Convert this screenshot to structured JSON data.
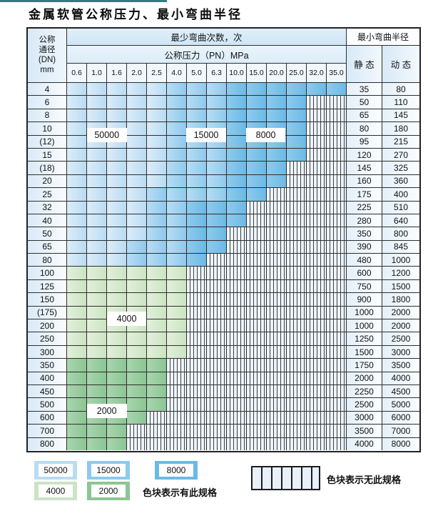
{
  "chart_data": {
    "type": "heatmap",
    "title": "金属软管公称压力、最小弯曲半径",
    "dn_header_lines": [
      "公称",
      "通径",
      "(DN)",
      "mm"
    ],
    "col_group_label": "最少弯曲次数，次",
    "pressure_label": "公称压力（PN）MPa",
    "radius_label": "最小弯曲半径",
    "static_label": "静 态",
    "dynamic_label": "动 态",
    "x_ticks": [
      "0.6",
      "1.0",
      "1.6",
      "2.0",
      "2.5",
      "4.0",
      "5.0",
      "6.3",
      "10.0",
      "15.0",
      "20.0",
      "25.0",
      "32.0",
      "35.0"
    ],
    "rows": [
      {
        "dn": "4",
        "static": "35",
        "dynamic": "80",
        "zones": [
          [
            "50000",
            0,
            4
          ],
          [
            "15000",
            5,
            7
          ],
          [
            "8000",
            8,
            13
          ]
        ]
      },
      {
        "dn": "6",
        "static": "50",
        "dynamic": "110",
        "zones": [
          [
            "50000",
            0,
            4
          ],
          [
            "15000",
            5,
            7
          ],
          [
            "8000",
            8,
            11
          ]
        ]
      },
      {
        "dn": "8",
        "static": "65",
        "dynamic": "145",
        "zones": [
          [
            "50000",
            0,
            4
          ],
          [
            "15000",
            5,
            7
          ],
          [
            "8000",
            8,
            11
          ]
        ]
      },
      {
        "dn": "10",
        "static": "80",
        "dynamic": "180",
        "zones": [
          [
            "50000",
            0,
            4
          ],
          [
            "15000",
            5,
            7
          ],
          [
            "8000",
            8,
            11
          ]
        ]
      },
      {
        "dn": "(12)",
        "static": "95",
        "dynamic": "215",
        "zones": [
          [
            "50000",
            0,
            4
          ],
          [
            "15000",
            5,
            7
          ],
          [
            "8000",
            8,
            11
          ]
        ]
      },
      {
        "dn": "15",
        "static": "120",
        "dynamic": "270",
        "zones": [
          [
            "50000",
            0,
            4
          ],
          [
            "15000",
            5,
            7
          ],
          [
            "8000",
            8,
            11
          ]
        ]
      },
      {
        "dn": "(18)",
        "static": "145",
        "dynamic": "325",
        "zones": [
          [
            "50000",
            0,
            4
          ],
          [
            "15000",
            5,
            7
          ],
          [
            "8000",
            8,
            10
          ]
        ]
      },
      {
        "dn": "20",
        "static": "160",
        "dynamic": "360",
        "zones": [
          [
            "50000",
            0,
            4
          ],
          [
            "15000",
            5,
            7
          ],
          [
            "8000",
            8,
            10
          ]
        ]
      },
      {
        "dn": "25",
        "static": "175",
        "dynamic": "400",
        "zones": [
          [
            "50000",
            0,
            3
          ],
          [
            "15000",
            4,
            7
          ],
          [
            "8000",
            8,
            9
          ]
        ]
      },
      {
        "dn": "32",
        "static": "225",
        "dynamic": "510",
        "zones": [
          [
            "50000",
            0,
            3
          ],
          [
            "15000",
            4,
            5
          ],
          [
            "8000",
            6,
            8
          ]
        ]
      },
      {
        "dn": "40",
        "static": "280",
        "dynamic": "640",
        "zones": [
          [
            "50000",
            0,
            3
          ],
          [
            "15000",
            4,
            5
          ],
          [
            "8000",
            6,
            8
          ]
        ]
      },
      {
        "dn": "50",
        "static": "350",
        "dynamic": "800",
        "zones": [
          [
            "50000",
            0,
            3
          ],
          [
            "15000",
            4,
            5
          ],
          [
            "8000",
            6,
            7
          ]
        ]
      },
      {
        "dn": "65",
        "static": "390",
        "dynamic": "845",
        "zones": [
          [
            "50000",
            0,
            2
          ],
          [
            "15000",
            3,
            5
          ],
          [
            "8000",
            6,
            7
          ]
        ]
      },
      {
        "dn": "80",
        "static": "480",
        "dynamic": "1000",
        "zones": [
          [
            "50000",
            0,
            2
          ],
          [
            "15000",
            3,
            5
          ],
          [
            "8000",
            6,
            6
          ]
        ]
      },
      {
        "dn": "100",
        "static": "600",
        "dynamic": "1200",
        "zones": [
          [
            "4000",
            0,
            5
          ]
        ]
      },
      {
        "dn": "125",
        "static": "750",
        "dynamic": "1500",
        "zones": [
          [
            "4000",
            0,
            5
          ]
        ]
      },
      {
        "dn": "150",
        "static": "900",
        "dynamic": "1800",
        "zones": [
          [
            "4000",
            0,
            5
          ]
        ]
      },
      {
        "dn": "(175)",
        "static": "1000",
        "dynamic": "2000",
        "zones": [
          [
            "4000",
            0,
            5
          ]
        ]
      },
      {
        "dn": "200",
        "static": "1000",
        "dynamic": "2000",
        "zones": [
          [
            "4000",
            0,
            5
          ]
        ]
      },
      {
        "dn": "250",
        "static": "1250",
        "dynamic": "2500",
        "zones": [
          [
            "4000",
            0,
            5
          ]
        ]
      },
      {
        "dn": "300",
        "static": "1500",
        "dynamic": "3000",
        "zones": [
          [
            "4000",
            0,
            5
          ]
        ]
      },
      {
        "dn": "350",
        "static": "1750",
        "dynamic": "3500",
        "zones": [
          [
            "2000",
            0,
            4
          ]
        ]
      },
      {
        "dn": "400",
        "static": "2000",
        "dynamic": "4000",
        "zones": [
          [
            "2000",
            0,
            4
          ]
        ]
      },
      {
        "dn": "450",
        "static": "2250",
        "dynamic": "4500",
        "zones": [
          [
            "2000",
            0,
            4
          ]
        ]
      },
      {
        "dn": "500",
        "static": "2500",
        "dynamic": "5000",
        "zones": [
          [
            "2000",
            0,
            4
          ]
        ]
      },
      {
        "dn": "600",
        "static": "3000",
        "dynamic": "6000",
        "zones": [
          [
            "2000",
            0,
            3
          ]
        ]
      },
      {
        "dn": "700",
        "static": "3500",
        "dynamic": "7000",
        "zones": [
          [
            "2000",
            0,
            2
          ]
        ]
      },
      {
        "dn": "800",
        "static": "4000",
        "dynamic": "8000",
        "zones": [
          [
            "2000",
            0,
            2
          ]
        ]
      }
    ],
    "region_labels": [
      {
        "text": "50000",
        "cols": [
          1,
          2
        ],
        "row_boundary": 4
      },
      {
        "text": "15000",
        "cols": [
          6,
          7
        ],
        "row_boundary": 4
      },
      {
        "text": "8000",
        "cols": [
          9,
          10
        ],
        "row_boundary": 4
      },
      {
        "text": "4000",
        "cols": [
          2,
          3
        ],
        "row_boundary": 18
      },
      {
        "text": "2000",
        "cols": [
          1,
          2
        ],
        "row_boundary": 25
      }
    ],
    "legend": {
      "swatches": [
        {
          "value": "50000"
        },
        {
          "value": "15000"
        },
        {
          "value": "8000"
        },
        {
          "value": "4000"
        },
        {
          "value": "2000"
        }
      ],
      "has_spec_label": "色块表示有此规格",
      "no_spec_label": "色块表示无此规格"
    },
    "colors": {
      "50000": [
        "#dcecf9",
        "#b9dcf3"
      ],
      "15000": [
        "#b7ddf4",
        "#8fc9ed"
      ],
      "8000": [
        "#8fcaed",
        "#6bbae6"
      ],
      "4000": [
        "#e2f0da",
        "#cbe4c2"
      ],
      "2000": [
        "#a9d5ae",
        "#8bc694"
      ],
      "accent_bar": "#2f7d80"
    }
  }
}
